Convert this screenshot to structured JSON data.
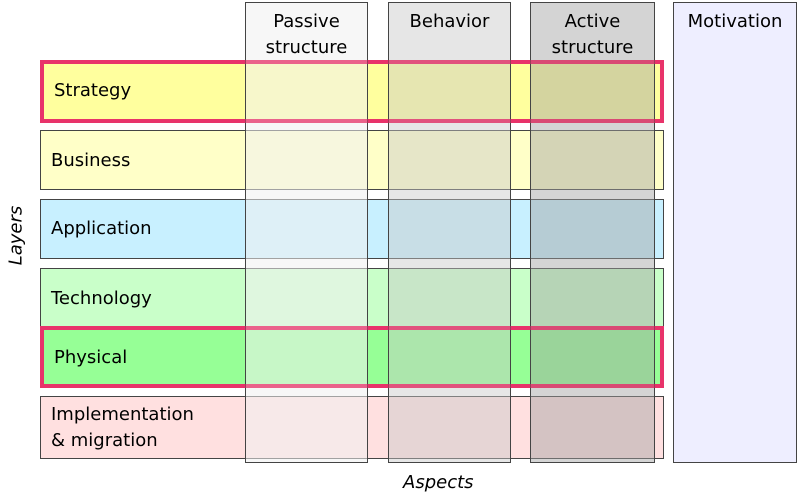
{
  "layers": [
    {
      "label": "Strategy",
      "color": "#ffff9e"
    },
    {
      "label": "Business",
      "color": "#ffffc8"
    },
    {
      "label": "Application",
      "color": "#c8f0ff"
    },
    {
      "label": "Technology",
      "color": "#c9ffc9"
    },
    {
      "label": "Physical",
      "color": "#96ff96"
    },
    {
      "label": "Implementation\n& migration",
      "color": "#ffe0e0"
    }
  ],
  "aspects": [
    {
      "label": "Passive\nstructure",
      "color": "#f5f5f5"
    },
    {
      "label": "Behavior",
      "color": "#e6e6e6"
    },
    {
      "label": "Active\nstructure",
      "color": "#d6d6d6"
    }
  ],
  "motivation": {
    "label": "Motivation",
    "color": "#eeeeff"
  },
  "axis": {
    "layers": "Layers",
    "aspects": "Aspects"
  },
  "highlight_color": "#e8336a"
}
